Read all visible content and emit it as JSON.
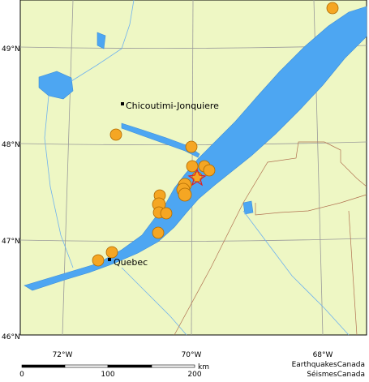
{
  "graticule": {
    "latitudes": [
      "49°N",
      "48°N",
      "47°N",
      "46°N"
    ],
    "longitudes": [
      "72°W",
      "70°W",
      "68°W"
    ]
  },
  "places": [
    "Chicoutimi-Jonquiere",
    "Quebec"
  ],
  "scale_bar": {
    "ticks": [
      "0",
      "100",
      "200"
    ],
    "unit": "km"
  },
  "credits": [
    "EarthquakesCanada",
    "SéismesCanada"
  ]
}
